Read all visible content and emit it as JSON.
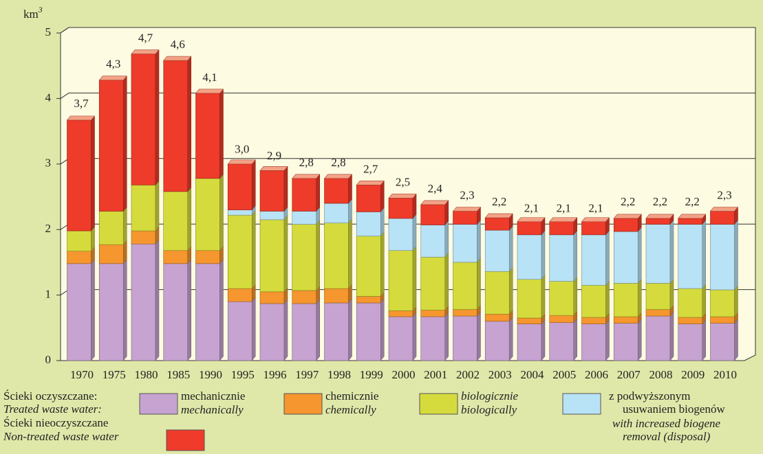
{
  "chart_data": {
    "type": "bar3d_stacked",
    "ylabel": "km",
    "ylabel_sup": "3",
    "categories": [
      "1970",
      "1975",
      "1980",
      "1985",
      "1990",
      "1995",
      "1996",
      "1997",
      "1998",
      "1999",
      "2000",
      "2001",
      "2002",
      "2003",
      "2004",
      "2005",
      "2006",
      "2007",
      "2008",
      "2009",
      "2010"
    ],
    "ylim": [
      0,
      5
    ],
    "yticks": [
      0,
      1,
      2,
      3,
      4,
      5
    ],
    "grid": true,
    "legend_group": {
      "label": "Ścieki oczyszczane:",
      "label_en": "Treated waste water:"
    },
    "series": [
      {
        "name": [
          "mechanicznie"
        ],
        "name_en": [
          "mechanically"
        ],
        "color": "#c6a3d0",
        "values": [
          1.48,
          1.48,
          1.78,
          1.48,
          1.48,
          0.9,
          0.87,
          0.87,
          0.88,
          0.88,
          0.67,
          0.67,
          0.68,
          0.6,
          0.56,
          0.58,
          0.56,
          0.57,
          0.68,
          0.56,
          0.57
        ]
      },
      {
        "name": [
          "chemicznie"
        ],
        "name_en": [
          "chemically"
        ],
        "color": "#f5962e",
        "values": [
          0.19,
          0.29,
          0.2,
          0.2,
          0.2,
          0.2,
          0.18,
          0.2,
          0.22,
          0.1,
          0.09,
          0.1,
          0.1,
          0.11,
          0.09,
          0.11,
          0.1,
          0.1,
          0.1,
          0.1,
          0.1
        ]
      },
      {
        "name": [
          "biologicznie"
        ],
        "name_en": [
          "biologically"
        ],
        "color": "#d5db3c",
        "values": [
          0.31,
          0.51,
          0.7,
          0.9,
          1.1,
          1.12,
          1.1,
          1.01,
          1.0,
          0.92,
          0.92,
          0.81,
          0.72,
          0.65,
          0.59,
          0.52,
          0.49,
          0.51,
          0.4,
          0.44,
          0.41
        ]
      },
      {
        "name": [
          "z podwyższonym",
          "usuwaniem biogenów"
        ],
        "name_en": [
          "with increased biogene",
          "removal (disposal)"
        ],
        "color": "#b8e2f5",
        "values": [
          0,
          0,
          0,
          0,
          0,
          0.08,
          0.13,
          0.2,
          0.3,
          0.37,
          0.49,
          0.49,
          0.58,
          0.63,
          0.68,
          0.71,
          0.77,
          0.79,
          0.9,
          0.98,
          1.0
        ]
      },
      {
        "name": [
          "Ścieki nieoczyszczane"
        ],
        "name_en": [
          "Non-treated waste water"
        ],
        "color": "#ee3b2a",
        "values": [
          1.69,
          2.0,
          2.0,
          2.0,
          1.3,
          0.7,
          0.62,
          0.5,
          0.38,
          0.41,
          0.31,
          0.31,
          0.2,
          0.19,
          0.2,
          0.2,
          0.2,
          0.2,
          0.09,
          0.09,
          0.2
        ]
      }
    ],
    "totals": {
      "values": [
        3.7,
        4.3,
        4.7,
        4.6,
        4.1,
        3.0,
        2.9,
        2.8,
        2.8,
        2.7,
        2.5,
        2.4,
        2.3,
        2.2,
        2.1,
        2.1,
        2.1,
        2.2,
        2.2,
        2.2,
        2.3
      ],
      "value_labels": [
        "3,7",
        "4,3",
        "4,7",
        "4,6",
        "4,1",
        "3,0",
        "2,9",
        "2,8",
        "2,8",
        "2,7",
        "2,5",
        "2,4",
        "2,3",
        "2,2",
        "2,1",
        "2,1",
        "2,1",
        "2,2",
        "2,2",
        "2,2",
        "2,3"
      ]
    }
  }
}
